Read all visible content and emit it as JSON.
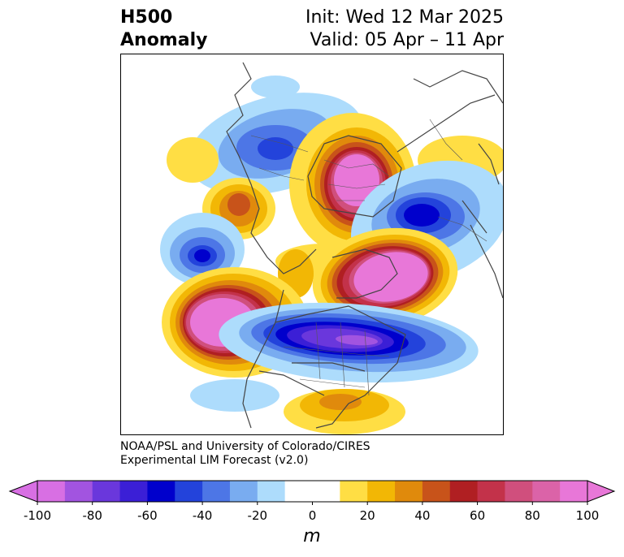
{
  "title": {
    "left_line1": "H500",
    "left_line2": "Anomaly",
    "right_line1": "Init: Wed 12 Mar 2025",
    "right_line2": "Valid: 05 Apr – 11 Apr"
  },
  "credit": {
    "line1": "NOAA/PSL and University of Colorado/CIRES",
    "line2": "Experimental LIM Forecast (v2.0)"
  },
  "colorbar": {
    "unit": "m",
    "ticks": [
      "-100",
      "-80",
      "-60",
      "-40",
      "-20",
      "0",
      "20",
      "40",
      "60",
      "80",
      "100"
    ],
    "colors": [
      "#d86fe3",
      "#a254e0",
      "#6a37dc",
      "#3b1fd6",
      "#0000cc",
      "#2343db",
      "#4d76e6",
      "#79acf0",
      "#addcfc",
      "#ffffff",
      "#ffffff",
      "#ffde44",
      "#f2b705",
      "#e08a0c",
      "#c8531a",
      "#b01f22",
      "#c3324a",
      "#d04f7d",
      "#db63a8",
      "#e877d8"
    ],
    "underflow_color": "#d86fe3",
    "overflow_color": "#e877d8"
  },
  "anomalies": [
    {
      "sign": "positive",
      "peak": 100,
      "region": "North Pacific / Bering"
    },
    {
      "sign": "positive",
      "peak": 100,
      "region": "Barents / Northern Europe"
    },
    {
      "sign": "positive",
      "peak": 100,
      "region": "Eastern Pacific off North America"
    },
    {
      "sign": "positive",
      "peak": 60,
      "region": "Western Siberia"
    },
    {
      "sign": "positive",
      "peak": 40,
      "region": "Southeastern United States"
    },
    {
      "sign": "negative",
      "peak": -80,
      "region": "Central North America / Canada"
    },
    {
      "sign": "negative",
      "peak": -60,
      "region": "Central Asia"
    },
    {
      "sign": "negative",
      "peak": -60,
      "region": "Southwestern Russia"
    },
    {
      "sign": "negative",
      "peak": -60,
      "region": "North Atlantic"
    }
  ]
}
